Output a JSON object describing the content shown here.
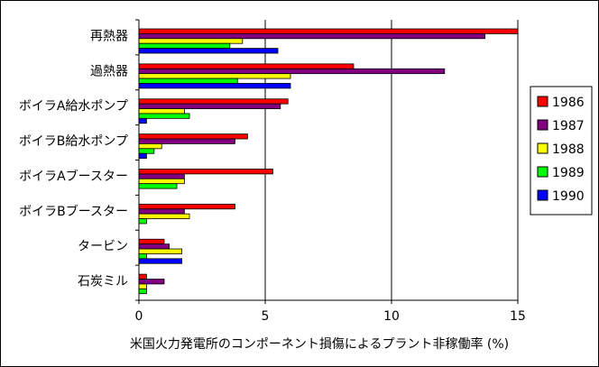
{
  "chart_data": {
    "type": "bar",
    "orientation": "horizontal",
    "categories": [
      "再熱器",
      "過熱器",
      "ボイラA給水ポンプ",
      "ボイラB給水ポンプ",
      "ボイラAブースター",
      "ボイラBブースター",
      "タービン",
      "石炭ミル"
    ],
    "series": [
      {
        "name": "1986",
        "color": "#ff0000",
        "values": [
          15.0,
          8.5,
          5.9,
          4.3,
          5.3,
          3.8,
          1.0,
          0.3
        ]
      },
      {
        "name": "1987",
        "color": "#800080",
        "values": [
          13.7,
          12.1,
          5.6,
          3.8,
          1.8,
          1.8,
          1.2,
          1.0
        ]
      },
      {
        "name": "1988",
        "color": "#ffff00",
        "values": [
          4.1,
          6.0,
          1.8,
          0.9,
          1.8,
          2.0,
          1.7,
          0.3
        ]
      },
      {
        "name": "1989",
        "color": "#00ff00",
        "values": [
          3.6,
          3.9,
          2.0,
          0.6,
          1.5,
          0.3,
          0.3,
          0.3
        ]
      },
      {
        "name": "1990",
        "color": "#0000ff",
        "values": [
          5.5,
          6.0,
          0.3,
          0.3,
          0.0,
          0.0,
          1.7,
          0.0
        ]
      }
    ],
    "xlabel": "米国火力発電所のコンポーネント損傷によるプラント非稼働率 (%)",
    "ylabel": "",
    "xlim": [
      0,
      15
    ],
    "xticks": [
      "0",
      "5",
      "10",
      "15"
    ],
    "xtick_values": [
      0,
      5,
      10,
      15
    ],
    "grid": "vertical",
    "legend_position": "right"
  }
}
